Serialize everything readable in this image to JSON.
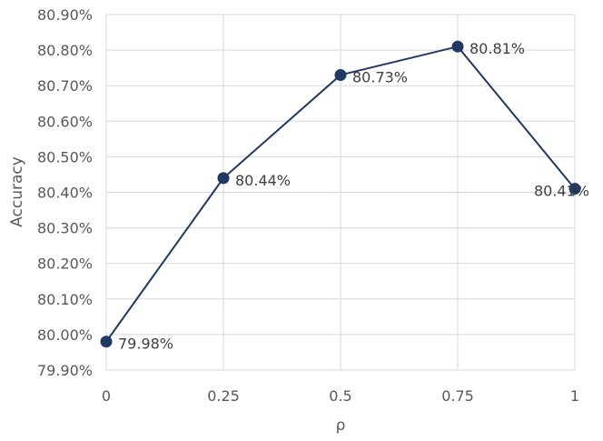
{
  "chart_data": {
    "type": "line",
    "title": "",
    "xlabel": "ρ",
    "ylabel": "Accuracy",
    "x": [
      0,
      0.25,
      0.5,
      0.75,
      1
    ],
    "x_tick_labels": [
      "0",
      "0.25",
      "0.5",
      "0.75",
      "1"
    ],
    "xlim": [
      0,
      1
    ],
    "ylim": [
      79.9,
      80.9
    ],
    "y_ticks": [
      79.9,
      80.0,
      80.1,
      80.2,
      80.3,
      80.4,
      80.5,
      80.6,
      80.7,
      80.8,
      80.9
    ],
    "y_tick_labels": [
      "79.90%",
      "80.00%",
      "80.10%",
      "80.20%",
      "80.30%",
      "80.40%",
      "80.50%",
      "80.60%",
      "80.70%",
      "80.80%",
      "80.90%"
    ],
    "y_unit": "%",
    "grid": true,
    "legend": "none",
    "series": [
      {
        "values": [
          79.98,
          80.44,
          80.73,
          80.81,
          80.41
        ],
        "data_labels": [
          "79.98%",
          "80.44%",
          "80.73%",
          "80.81%",
          "80.41%"
        ],
        "color": "#1f3864"
      }
    ],
    "gridline_color": "#d9d9d9",
    "text_color": "#595959"
  }
}
